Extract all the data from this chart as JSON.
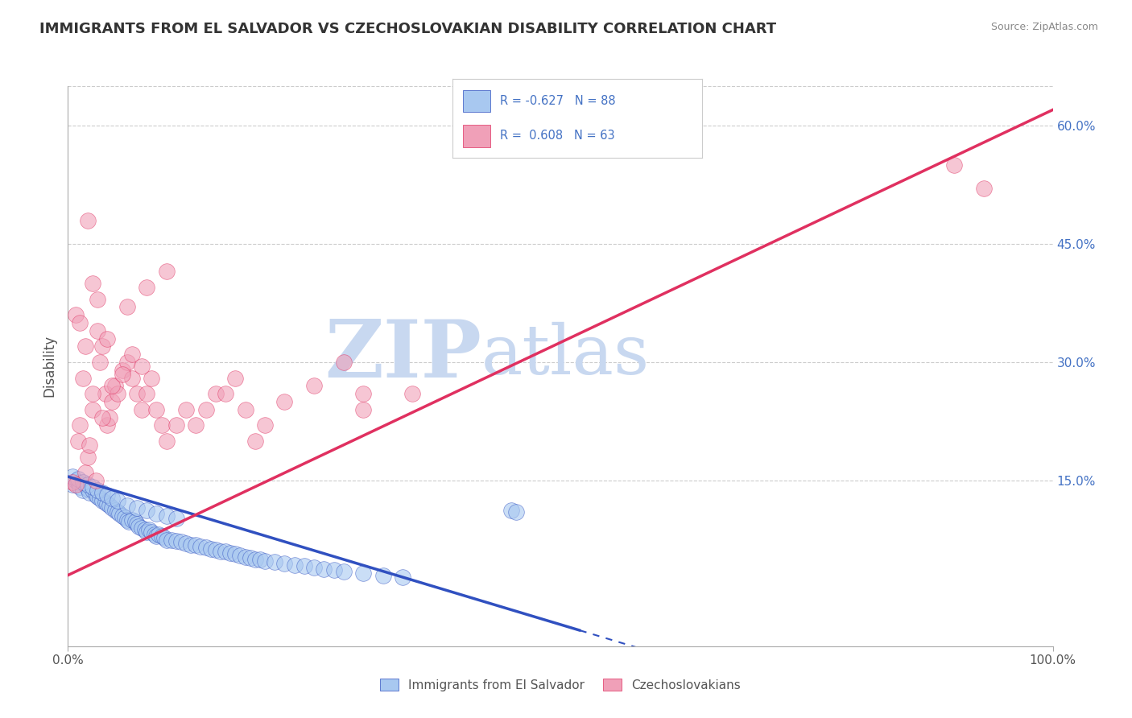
{
  "title": "IMMIGRANTS FROM EL SALVADOR VS CZECHOSLOVAKIAN DISABILITY CORRELATION CHART",
  "source": "Source: ZipAtlas.com",
  "ylabel": "Disability",
  "blue_label": "Immigrants from El Salvador",
  "pink_label": "Czechoslovakians",
  "blue_R": -0.627,
  "blue_N": 88,
  "pink_R": 0.608,
  "pink_N": 63,
  "blue_color": "#A8C8F0",
  "pink_color": "#F0A0B8",
  "blue_line_color": "#3050C0",
  "pink_line_color": "#E03060",
  "background_color": "#FFFFFF",
  "watermark_zip": "ZIP",
  "watermark_atlas": "atlas",
  "watermark_color": "#C8D8F0",
  "xlim": [
    0,
    1.0
  ],
  "ylim": [
    -0.06,
    0.65
  ],
  "yticks": [
    0.15,
    0.3,
    0.45,
    0.6
  ],
  "ytick_labels": [
    "15.0%",
    "30.0%",
    "45.0%",
    "60.0%"
  ],
  "xtick_labels": [
    "0.0%",
    "100.0%"
  ],
  "grid_color": "#CCCCCC",
  "title_color": "#333333",
  "title_fontsize": 13,
  "blue_scatter_x": [
    0.005,
    0.008,
    0.01,
    0.012,
    0.015,
    0.018,
    0.02,
    0.022,
    0.025,
    0.028,
    0.03,
    0.032,
    0.035,
    0.038,
    0.04,
    0.042,
    0.045,
    0.048,
    0.05,
    0.052,
    0.055,
    0.058,
    0.06,
    0.062,
    0.065,
    0.068,
    0.07,
    0.072,
    0.075,
    0.078,
    0.08,
    0.082,
    0.085,
    0.088,
    0.09,
    0.092,
    0.095,
    0.098,
    0.1,
    0.105,
    0.11,
    0.115,
    0.12,
    0.125,
    0.13,
    0.135,
    0.14,
    0.145,
    0.15,
    0.155,
    0.16,
    0.165,
    0.17,
    0.175,
    0.18,
    0.185,
    0.19,
    0.195,
    0.2,
    0.21,
    0.22,
    0.23,
    0.24,
    0.25,
    0.26,
    0.27,
    0.28,
    0.3,
    0.32,
    0.34,
    0.005,
    0.01,
    0.015,
    0.02,
    0.025,
    0.03,
    0.035,
    0.04,
    0.045,
    0.05,
    0.06,
    0.07,
    0.08,
    0.09,
    0.1,
    0.11,
    0.45,
    0.455
  ],
  "blue_scatter_y": [
    0.145,
    0.15,
    0.148,
    0.142,
    0.138,
    0.145,
    0.14,
    0.135,
    0.138,
    0.132,
    0.13,
    0.128,
    0.125,
    0.122,
    0.12,
    0.118,
    0.115,
    0.112,
    0.11,
    0.108,
    0.105,
    0.103,
    0.1,
    0.098,
    0.1,
    0.098,
    0.095,
    0.092,
    0.09,
    0.088,
    0.085,
    0.088,
    0.085,
    0.082,
    0.08,
    0.082,
    0.08,
    0.078,
    0.075,
    0.075,
    0.073,
    0.072,
    0.07,
    0.068,
    0.068,
    0.066,
    0.065,
    0.063,
    0.062,
    0.06,
    0.06,
    0.058,
    0.057,
    0.055,
    0.053,
    0.052,
    0.05,
    0.05,
    0.048,
    0.047,
    0.045,
    0.043,
    0.042,
    0.04,
    0.038,
    0.037,
    0.035,
    0.033,
    0.03,
    0.028,
    0.155,
    0.152,
    0.148,
    0.145,
    0.142,
    0.138,
    0.135,
    0.132,
    0.128,
    0.125,
    0.118,
    0.115,
    0.112,
    0.108,
    0.105,
    0.102,
    0.112,
    0.11
  ],
  "pink_scatter_x": [
    0.005,
    0.008,
    0.01,
    0.012,
    0.015,
    0.018,
    0.02,
    0.022,
    0.025,
    0.028,
    0.03,
    0.032,
    0.035,
    0.038,
    0.04,
    0.042,
    0.045,
    0.048,
    0.05,
    0.055,
    0.06,
    0.065,
    0.07,
    0.075,
    0.08,
    0.085,
    0.09,
    0.095,
    0.1,
    0.11,
    0.12,
    0.13,
    0.14,
    0.15,
    0.16,
    0.17,
    0.18,
    0.19,
    0.2,
    0.22,
    0.25,
    0.28,
    0.3,
    0.008,
    0.012,
    0.018,
    0.025,
    0.035,
    0.045,
    0.055,
    0.065,
    0.075,
    0.3,
    0.35,
    0.03,
    0.025,
    0.02,
    0.04,
    0.06,
    0.08,
    0.1,
    0.9,
    0.93
  ],
  "pink_scatter_y": [
    0.148,
    0.145,
    0.2,
    0.22,
    0.28,
    0.16,
    0.18,
    0.195,
    0.24,
    0.15,
    0.34,
    0.3,
    0.32,
    0.26,
    0.22,
    0.23,
    0.25,
    0.27,
    0.26,
    0.29,
    0.3,
    0.28,
    0.26,
    0.24,
    0.26,
    0.28,
    0.24,
    0.22,
    0.2,
    0.22,
    0.24,
    0.22,
    0.24,
    0.26,
    0.26,
    0.28,
    0.24,
    0.2,
    0.22,
    0.25,
    0.27,
    0.3,
    0.26,
    0.36,
    0.35,
    0.32,
    0.26,
    0.23,
    0.27,
    0.285,
    0.31,
    0.295,
    0.24,
    0.26,
    0.38,
    0.4,
    0.48,
    0.33,
    0.37,
    0.395,
    0.415,
    0.55,
    0.52
  ],
  "blue_line_x_start": 0.0,
  "blue_line_x_end": 0.52,
  "blue_line_x_dash_start": 0.52,
  "blue_line_x_dash_end": 0.73,
  "pink_line_x_start": 0.0,
  "pink_line_x_end": 1.0
}
